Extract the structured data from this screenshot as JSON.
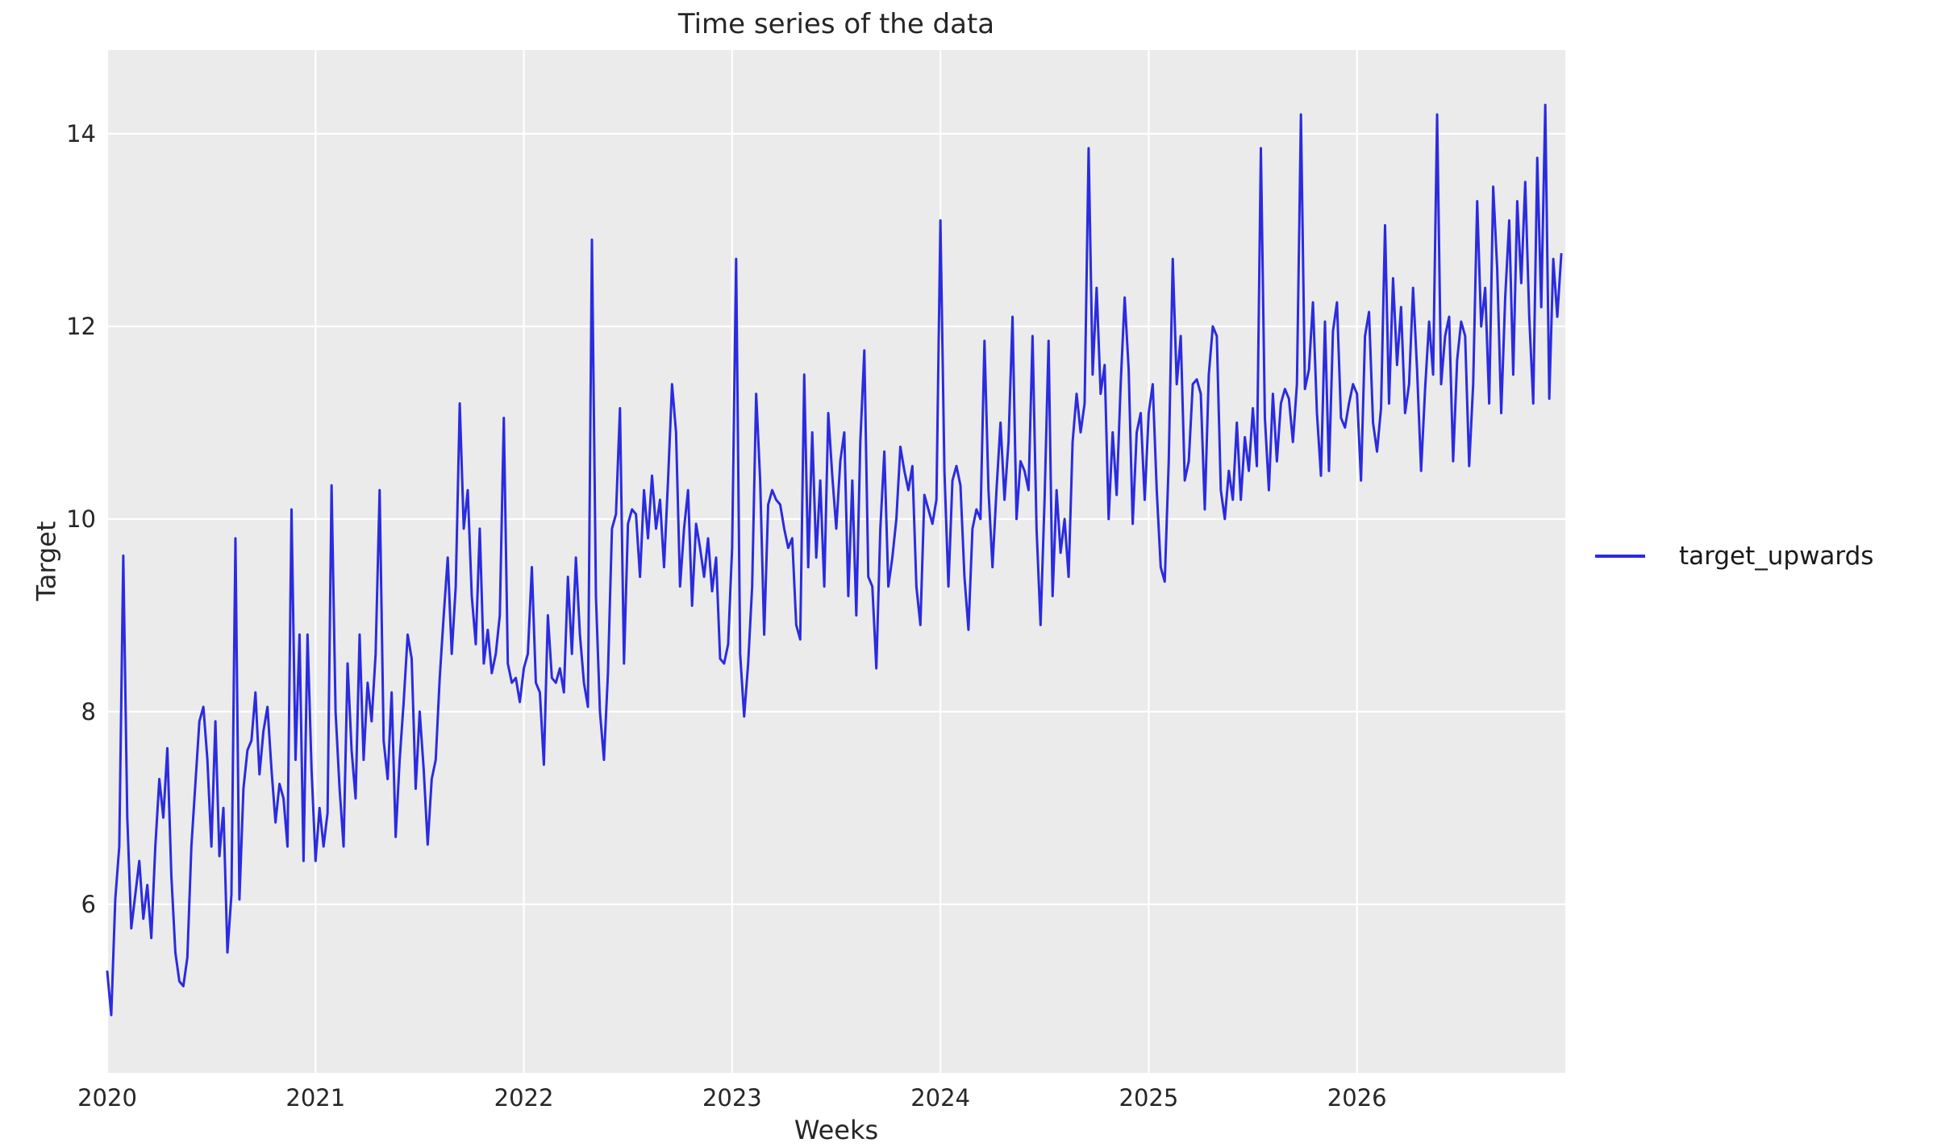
{
  "figure": {
    "title": "Time series of the data",
    "xlabel": "Weeks",
    "ylabel": "Target"
  },
  "legend": {
    "entries": [
      {
        "label": "target_upwards",
        "color": "#2b2be0"
      }
    ],
    "position": "right-of-plot"
  },
  "colors": {
    "figure_background": "#ffffff",
    "axes_background": "#ebebeb",
    "grid": "#ffffff",
    "line": "#2b2be0",
    "text": "#262626"
  },
  "chart_data": {
    "type": "line",
    "title": "Time series of the data",
    "xlabel": "Weeks",
    "ylabel": "Target",
    "series_name": "target_upwards",
    "grid": true,
    "xlim": [
      2020,
      2027.0
    ],
    "ylim": [
      4.25,
      14.87
    ],
    "xticks": [
      2020,
      2021,
      2022,
      2023,
      2024,
      2025,
      2026
    ],
    "yticks": [
      6,
      8,
      10,
      12,
      14
    ],
    "x_start": 2020,
    "x_step": 0.01923077,
    "values": [
      5.3,
      4.85,
      6.05,
      6.6,
      9.62,
      6.9,
      5.75,
      6.1,
      6.45,
      5.85,
      6.2,
      5.65,
      6.6,
      7.3,
      6.9,
      7.62,
      6.3,
      5.5,
      5.2,
      5.15,
      5.45,
      6.6,
      7.25,
      7.9,
      8.05,
      7.5,
      6.6,
      7.9,
      6.5,
      7.0,
      5.5,
      6.1,
      9.8,
      6.05,
      7.2,
      7.6,
      7.7,
      8.2,
      7.35,
      7.8,
      8.05,
      7.4,
      6.85,
      7.25,
      7.1,
      6.6,
      10.1,
      7.5,
      8.8,
      6.45,
      8.8,
      7.4,
      6.45,
      7.0,
      6.6,
      6.95,
      10.35,
      8.0,
      7.2,
      6.6,
      8.5,
      7.6,
      7.1,
      8.8,
      7.5,
      8.3,
      7.9,
      8.6,
      10.3,
      7.7,
      7.3,
      8.2,
      6.7,
      7.5,
      8.1,
      8.8,
      8.55,
      7.2,
      8.0,
      7.4,
      6.62,
      7.3,
      7.5,
      8.35,
      9.0,
      9.6,
      8.6,
      9.3,
      11.2,
      9.9,
      10.3,
      9.2,
      8.7,
      9.9,
      8.5,
      8.85,
      8.4,
      8.6,
      9.0,
      11.05,
      8.5,
      8.3,
      8.35,
      8.1,
      8.45,
      8.6,
      9.5,
      8.3,
      8.2,
      7.45,
      9.0,
      8.35,
      8.3,
      8.45,
      8.2,
      9.4,
      8.6,
      9.6,
      8.8,
      8.3,
      8.05,
      12.9,
      9.2,
      8.0,
      7.5,
      8.4,
      9.9,
      10.05,
      11.15,
      8.5,
      9.95,
      10.1,
      10.05,
      9.4,
      10.3,
      9.8,
      10.45,
      9.9,
      10.2,
      9.5,
      10.4,
      11.4,
      10.9,
      9.3,
      9.9,
      10.3,
      9.1,
      9.95,
      9.7,
      9.4,
      9.8,
      9.25,
      9.6,
      8.55,
      8.5,
      8.7,
      9.7,
      12.7,
      8.6,
      7.95,
      8.5,
      9.3,
      11.3,
      10.4,
      8.8,
      10.15,
      10.3,
      10.2,
      10.15,
      9.9,
      9.7,
      9.8,
      8.9,
      8.75,
      11.5,
      9.5,
      10.9,
      9.6,
      10.4,
      9.3,
      11.1,
      10.45,
      9.9,
      10.6,
      10.9,
      9.2,
      10.4,
      9.0,
      10.8,
      11.75,
      9.4,
      9.3,
      8.45,
      9.9,
      10.7,
      9.3,
      9.6,
      10.0,
      10.75,
      10.5,
      10.3,
      10.55,
      9.3,
      8.9,
      10.25,
      10.1,
      9.95,
      10.2,
      13.1,
      10.5,
      9.3,
      10.4,
      10.55,
      10.35,
      9.4,
      8.85,
      9.9,
      10.1,
      10.0,
      11.85,
      10.3,
      9.5,
      10.3,
      11.0,
      10.2,
      10.8,
      12.1,
      10.0,
      10.6,
      10.5,
      10.3,
      11.9,
      9.9,
      8.9,
      10.2,
      11.85,
      9.2,
      10.3,
      9.65,
      10.0,
      9.4,
      10.8,
      11.3,
      10.9,
      11.2,
      13.85,
      11.5,
      12.4,
      11.3,
      11.6,
      10.0,
      10.9,
      10.25,
      11.4,
      12.3,
      11.55,
      9.95,
      10.9,
      11.1,
      10.2,
      11.1,
      11.4,
      10.3,
      9.5,
      9.35,
      10.6,
      12.7,
      11.4,
      11.9,
      10.4,
      10.6,
      11.4,
      11.45,
      11.3,
      10.1,
      11.5,
      12.0,
      11.9,
      10.3,
      10.0,
      10.5,
      10.2,
      11.0,
      10.2,
      10.85,
      10.5,
      11.15,
      10.55,
      13.85,
      11.05,
      10.3,
      11.3,
      10.6,
      11.2,
      11.35,
      11.25,
      10.8,
      11.4,
      14.2,
      11.35,
      11.55,
      12.25,
      11.1,
      10.45,
      12.05,
      10.5,
      11.95,
      12.25,
      11.05,
      10.95,
      11.2,
      11.4,
      11.3,
      10.4,
      11.9,
      12.15,
      11.0,
      10.7,
      11.15,
      13.05,
      11.2,
      12.5,
      11.6,
      12.2,
      11.1,
      11.4,
      12.4,
      11.55,
      10.5,
      11.35,
      12.05,
      11.5,
      14.2,
      11.4,
      11.9,
      12.1,
      10.6,
      11.65,
      12.05,
      11.9,
      10.55,
      11.4,
      13.3,
      12.0,
      12.4,
      11.2,
      13.45,
      12.6,
      11.1,
      12.3,
      13.1,
      11.5,
      13.3,
      12.45,
      13.5,
      12.1,
      11.2,
      13.75,
      12.2,
      14.3,
      11.25,
      12.7,
      12.1,
      12.75
    ]
  }
}
